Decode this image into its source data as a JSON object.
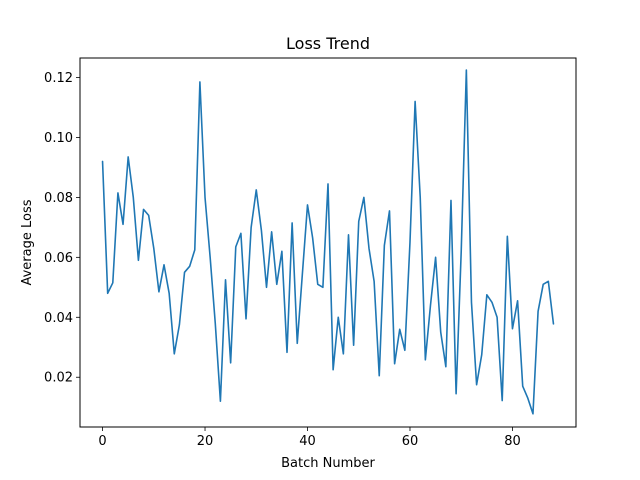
{
  "chart_data": {
    "type": "line",
    "title": "Loss Trend",
    "xlabel": "Batch Number",
    "ylabel": "Average Loss",
    "xlim": [
      -4.4,
      92.4
    ],
    "ylim": [
      0.0034,
      0.1265
    ],
    "xticks": [
      0,
      20,
      40,
      60,
      80
    ],
    "yticks": [
      0.02,
      0.04,
      0.06,
      0.08,
      0.1,
      0.12
    ],
    "ytick_labels": [
      "0.02",
      "0.04",
      "0.06",
      "0.08",
      "0.10",
      "0.12"
    ],
    "grid": false,
    "series": [
      {
        "color": "#1f77b4",
        "x": [
          0,
          1,
          2,
          3,
          4,
          5,
          6,
          7,
          8,
          9,
          10,
          11,
          12,
          13,
          14,
          15,
          16,
          17,
          18,
          19,
          20,
          21,
          22,
          23,
          24,
          25,
          26,
          27,
          28,
          29,
          30,
          31,
          32,
          33,
          34,
          35,
          36,
          37,
          38,
          39,
          40,
          41,
          42,
          43,
          44,
          45,
          46,
          47,
          48,
          49,
          50,
          51,
          52,
          53,
          54,
          55,
          56,
          57,
          58,
          59,
          60,
          61,
          62,
          63,
          64,
          65,
          66,
          67,
          68,
          69,
          70,
          71,
          72,
          73,
          74,
          75,
          76,
          77,
          78,
          79,
          80,
          81,
          82,
          83,
          84,
          85,
          86,
          87,
          88
        ],
        "values": [
          0.092,
          0.048,
          0.0515,
          0.0815,
          0.071,
          0.0935,
          0.08,
          0.059,
          0.076,
          0.074,
          0.063,
          0.0485,
          0.0575,
          0.048,
          0.0278,
          0.0375,
          0.055,
          0.057,
          0.0625,
          0.1185,
          0.08,
          0.06,
          0.038,
          0.012,
          0.0525,
          0.0248,
          0.0635,
          0.068,
          0.0395,
          0.07,
          0.0825,
          0.069,
          0.05,
          0.0685,
          0.051,
          0.062,
          0.0283,
          0.0715,
          0.0313,
          0.0545,
          0.0775,
          0.0665,
          0.051,
          0.05,
          0.0845,
          0.0225,
          0.04,
          0.0278,
          0.0675,
          0.0307,
          0.072,
          0.08,
          0.063,
          0.052,
          0.0205,
          0.064,
          0.0755,
          0.0245,
          0.036,
          0.029,
          0.065,
          0.112,
          0.08,
          0.0258,
          0.044,
          0.06,
          0.035,
          0.0235,
          0.079,
          0.0145,
          0.062,
          0.1225,
          0.045,
          0.0175,
          0.0275,
          0.0475,
          0.045,
          0.04,
          0.0122,
          0.067,
          0.0362,
          0.0455,
          0.017,
          0.013,
          0.0078,
          0.042,
          0.051,
          0.052,
          0.0378
        ]
      }
    ]
  }
}
